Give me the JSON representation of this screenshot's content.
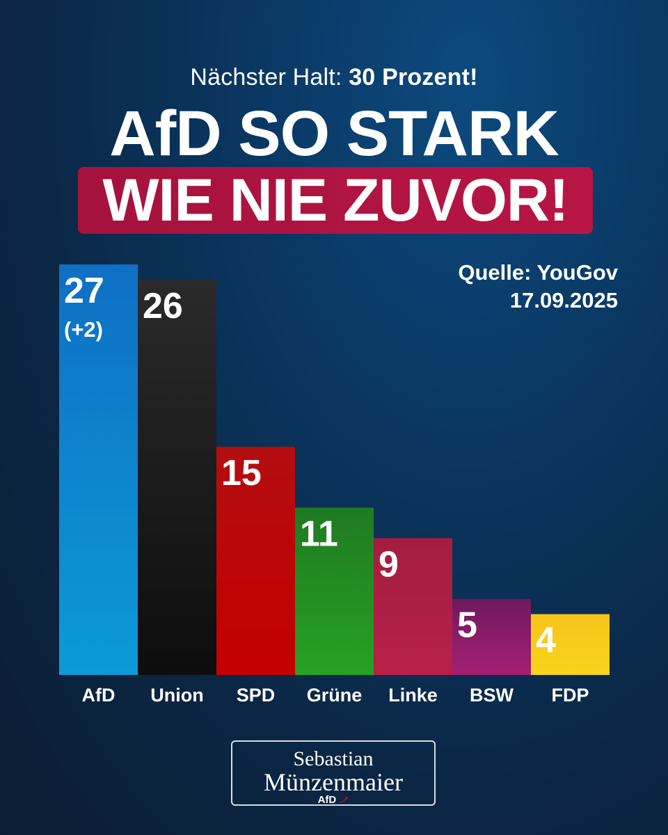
{
  "header": {
    "pretitle_normal": "Nächster Halt:",
    "pretitle_bold": "30 Prozent!",
    "headline": "AfD SO STARK",
    "banner": "WIE NIE ZUVOR!",
    "banner_color": "#b01442"
  },
  "source": {
    "line1": "Quelle: YouGov",
    "line2": "17.09.2025"
  },
  "chart_data": {
    "type": "bar",
    "categories": [
      "AfD",
      "Union",
      "SPD",
      "Grüne",
      "Linke",
      "BSW",
      "FDP"
    ],
    "values": [
      27,
      26,
      15,
      11,
      9,
      5,
      4
    ],
    "changes": [
      "(+2)",
      "",
      "",
      "",
      "",
      "",
      ""
    ],
    "colors": [
      [
        "#0f6fc4",
        "#0c9ad8"
      ],
      [
        "#2a2a2a",
        "#0d0d0d"
      ],
      [
        "#b30d10",
        "#c40000"
      ],
      [
        "#1f7a22",
        "#27a123"
      ],
      [
        "#a31d3e",
        "#b7204a"
      ],
      [
        "#6e1a5c",
        "#a61f74"
      ],
      [
        "#f6c41a",
        "#f8d51a"
      ]
    ],
    "value_label_colors": [
      "#ffffff",
      "#ffffff",
      "#ffffff",
      "#ffffff",
      "#ffffff",
      "#ffffff",
      "#ffffff"
    ],
    "ylim": [
      0,
      27
    ],
    "grid": false,
    "title": "",
    "xlabel": "",
    "ylabel": ""
  },
  "logo": {
    "line1": "Sebastian",
    "line2": "Münzenmaier",
    "line3": "AfD",
    "arrow_color": "#e3001b"
  }
}
